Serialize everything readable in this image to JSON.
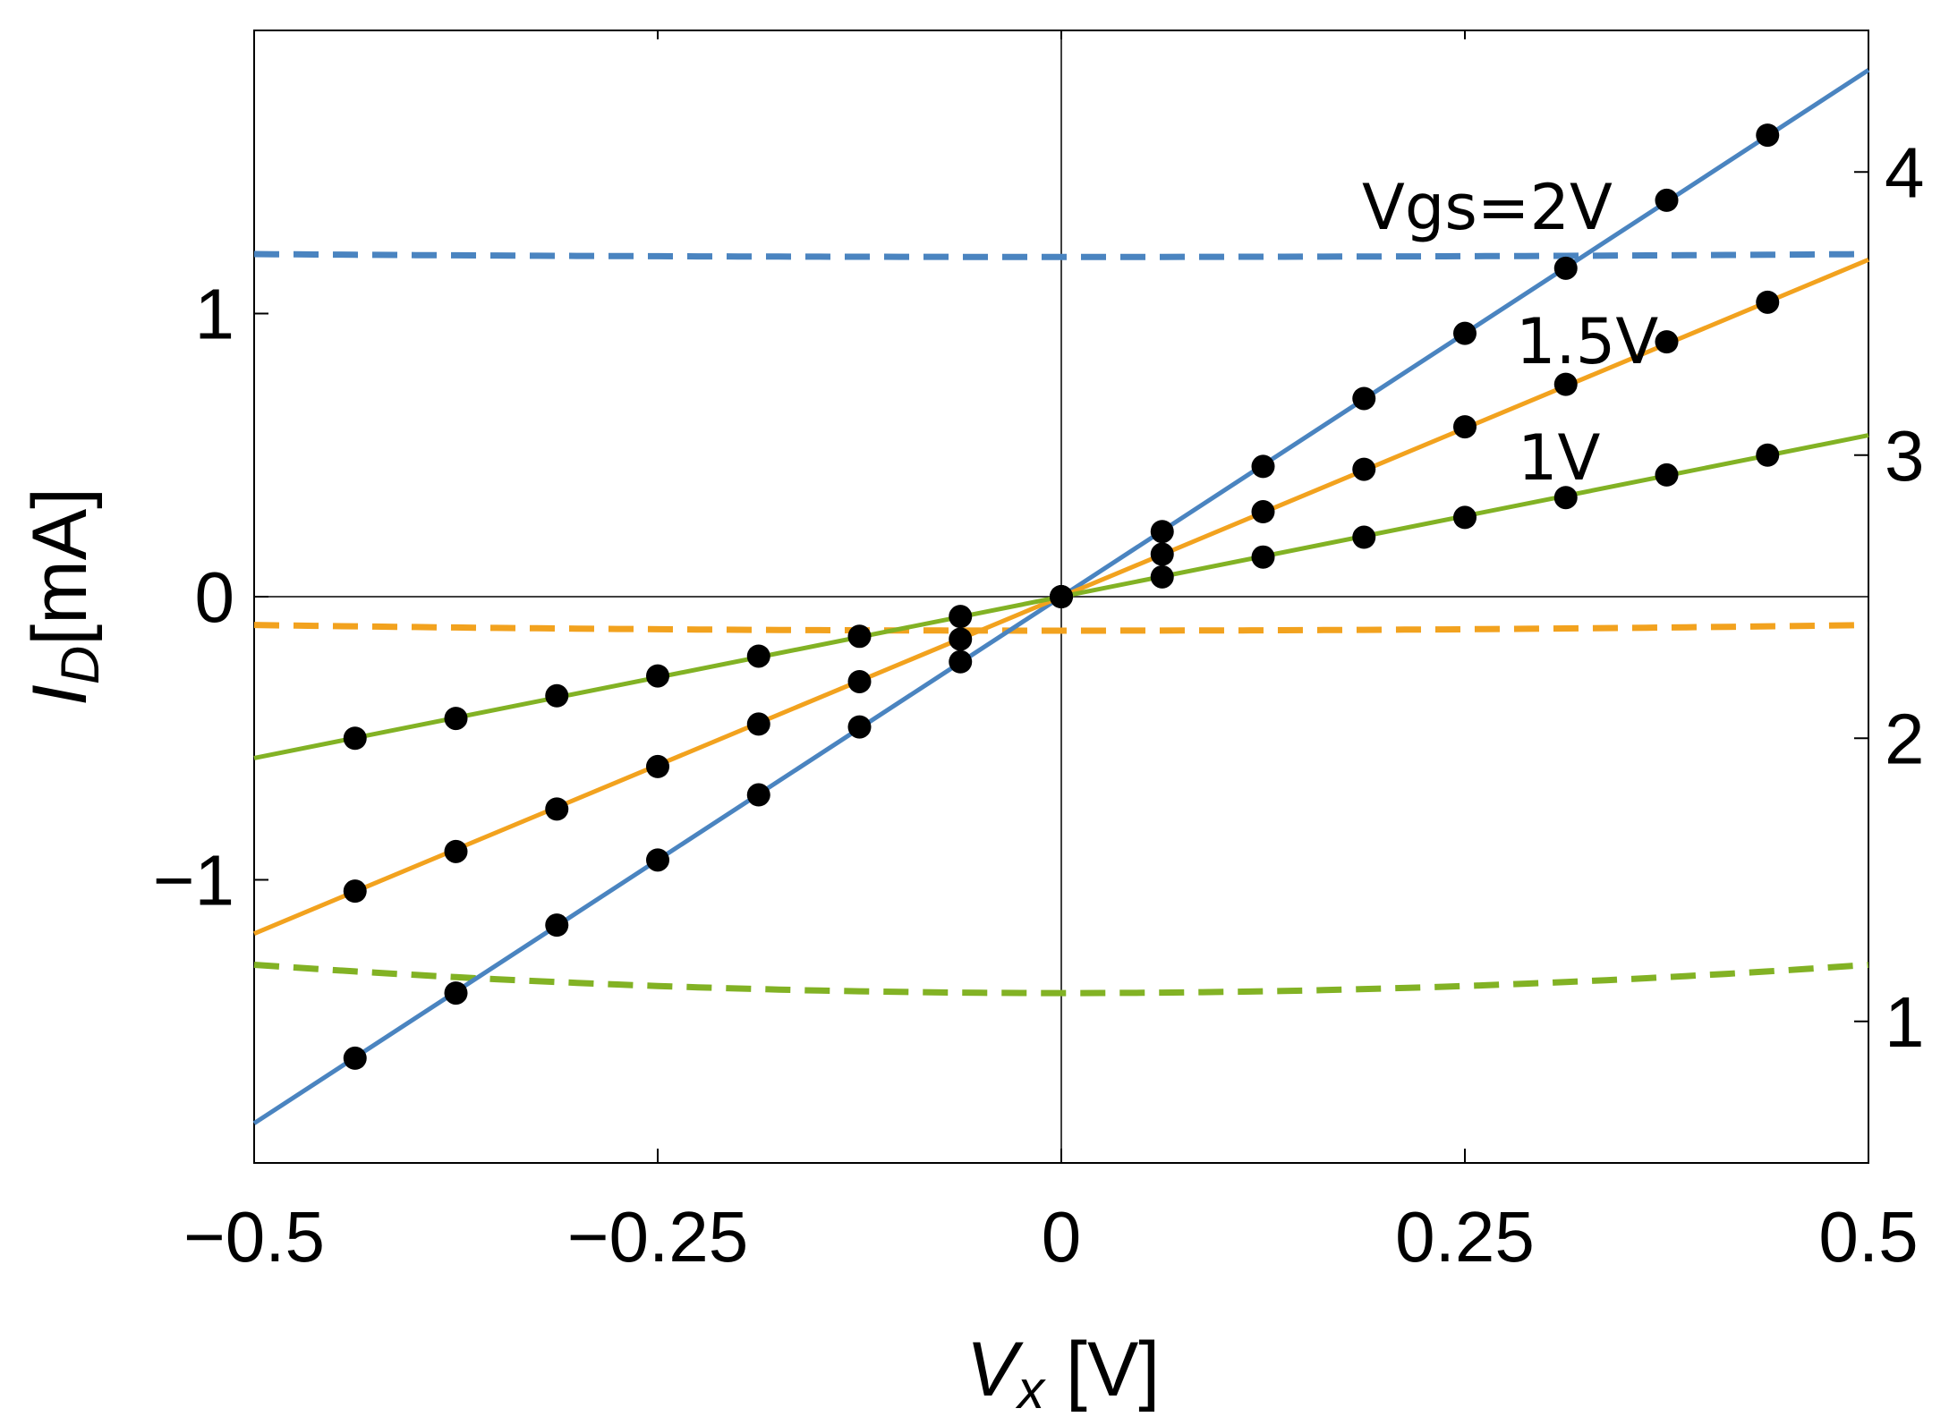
{
  "chart_data": {
    "type": "line",
    "xlabel": {
      "main": "V",
      "sub": "x",
      "unit": " [V]"
    },
    "ylabel": {
      "main": "I",
      "sub": "D",
      "unit": "[mA]"
    },
    "xlim": [
      -0.5,
      0.5
    ],
    "ylim": [
      -2.0,
      2.0
    ],
    "y2lim": [
      0.5,
      4.5
    ],
    "x_ticks": [
      -0.5,
      -0.25,
      0,
      0.25,
      0.5
    ],
    "x_tick_labels": [
      "−0.5",
      "−0.25",
      "0",
      "0.25",
      "0.5"
    ],
    "y_ticks": [
      -1,
      0,
      1
    ],
    "y_tick_labels": [
      "−1",
      "0",
      "1"
    ],
    "y2_ticks": [
      1,
      2,
      3,
      4
    ],
    "y2_tick_labels": [
      "1",
      "2",
      "3",
      "4"
    ],
    "series": [
      {
        "name": "Vgs=2V",
        "label": "Vgs=2V",
        "color": "#4a84c0",
        "slope": 3.72,
        "markers_x": [
          -0.4375,
          -0.375,
          -0.3125,
          -0.25,
          -0.1875,
          -0.125,
          -0.0625,
          0,
          0.0625,
          0.125,
          0.1875,
          0.25,
          0.3125,
          0.375,
          0.4375
        ],
        "markers_y": [
          -1.63,
          -1.4,
          -1.16,
          -0.93,
          -0.7,
          -0.46,
          -0.23,
          0,
          0.23,
          0.46,
          0.7,
          0.93,
          1.16,
          1.4,
          1.63
        ]
      },
      {
        "name": "1.5V",
        "label": "1.5V",
        "color": "#f2a21e",
        "slope": 2.38,
        "markers_x": [
          -0.4375,
          -0.375,
          -0.3125,
          -0.25,
          -0.1875,
          -0.125,
          -0.0625,
          0,
          0.0625,
          0.125,
          0.1875,
          0.25,
          0.3125,
          0.375,
          0.4375
        ],
        "markers_y": [
          -1.04,
          -0.9,
          -0.75,
          -0.6,
          -0.45,
          -0.3,
          -0.15,
          0,
          0.15,
          0.3,
          0.45,
          0.6,
          0.75,
          0.9,
          1.04
        ]
      },
      {
        "name": "1V",
        "label": "1V",
        "color": "#82b224",
        "slope": 1.14,
        "markers_x": [
          -0.4375,
          -0.375,
          -0.3125,
          -0.25,
          -0.1875,
          -0.125,
          -0.0625,
          0,
          0.0625,
          0.125,
          0.1875,
          0.25,
          0.3125,
          0.375,
          0.4375
        ],
        "markers_y": [
          -0.5,
          -0.43,
          -0.35,
          -0.28,
          -0.21,
          -0.14,
          -0.07,
          0,
          0.07,
          0.14,
          0.21,
          0.28,
          0.35,
          0.43,
          0.5
        ]
      }
    ],
    "dashed_series": [
      {
        "name": "Vgs=2V right-axis curve",
        "color": "#4a84c0",
        "axis": "right",
        "center": 3.7,
        "edge": 3.71
      },
      {
        "name": "1.5V right-axis curve",
        "color": "#f2a21e",
        "axis": "right",
        "center": 2.38,
        "edge": 2.4
      },
      {
        "name": "1V right-axis curve",
        "color": "#82b224",
        "axis": "right",
        "center": 1.1,
        "edge": 1.2
      }
    ]
  }
}
